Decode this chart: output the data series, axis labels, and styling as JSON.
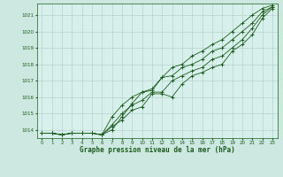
{
  "title": "Graphe pression niveau de la mer (hPa)",
  "bg_color": "#cce8e0",
  "plot_bg_color": "#d8f0ec",
  "grid_color": "#b0ccc8",
  "line_color": "#1a5c1a",
  "text_color": "#1a5c1a",
  "xlim": [
    -0.5,
    23.5
  ],
  "ylim": [
    1013.5,
    1021.7
  ],
  "yticks": [
    1014,
    1015,
    1016,
    1017,
    1018,
    1019,
    1020,
    1021
  ],
  "xticks": [
    0,
    1,
    2,
    3,
    4,
    5,
    6,
    7,
    8,
    9,
    10,
    11,
    12,
    13,
    14,
    15,
    16,
    17,
    18,
    19,
    20,
    21,
    22,
    23
  ],
  "series": [
    [
      1013.8,
      1013.8,
      1013.7,
      1013.8,
      1013.8,
      1013.8,
      1013.7,
      1014.2,
      1014.6,
      1015.2,
      1015.4,
      1016.2,
      1016.2,
      1016.0,
      1016.8,
      1017.3,
      1017.5,
      1017.8,
      1018.0,
      1018.8,
      1019.2,
      1019.8,
      1020.8,
      1021.4
    ],
    [
      1013.8,
      1013.8,
      1013.7,
      1013.8,
      1013.8,
      1013.8,
      1013.7,
      1014.3,
      1015.0,
      1015.5,
      1015.8,
      1016.3,
      1016.3,
      1017.0,
      1017.3,
      1017.6,
      1017.8,
      1018.3,
      1018.5,
      1019.0,
      1019.5,
      1020.2,
      1021.0,
      1021.5
    ],
    [
      1013.8,
      1013.8,
      1013.7,
      1013.8,
      1013.8,
      1013.8,
      1013.7,
      1014.8,
      1015.5,
      1016.0,
      1016.3,
      1016.5,
      1017.2,
      1017.8,
      1018.0,
      1018.5,
      1018.8,
      1019.2,
      1019.5,
      1020.0,
      1020.5,
      1021.0,
      1021.4,
      1021.6
    ],
    [
      1013.8,
      1013.8,
      1013.7,
      1013.8,
      1013.8,
      1013.8,
      1013.7,
      1014.0,
      1014.8,
      1015.6,
      1016.3,
      1016.4,
      1017.2,
      1017.3,
      1017.8,
      1018.0,
      1018.3,
      1018.8,
      1019.0,
      1019.5,
      1020.0,
      1020.5,
      1021.2,
      1021.5
    ]
  ]
}
